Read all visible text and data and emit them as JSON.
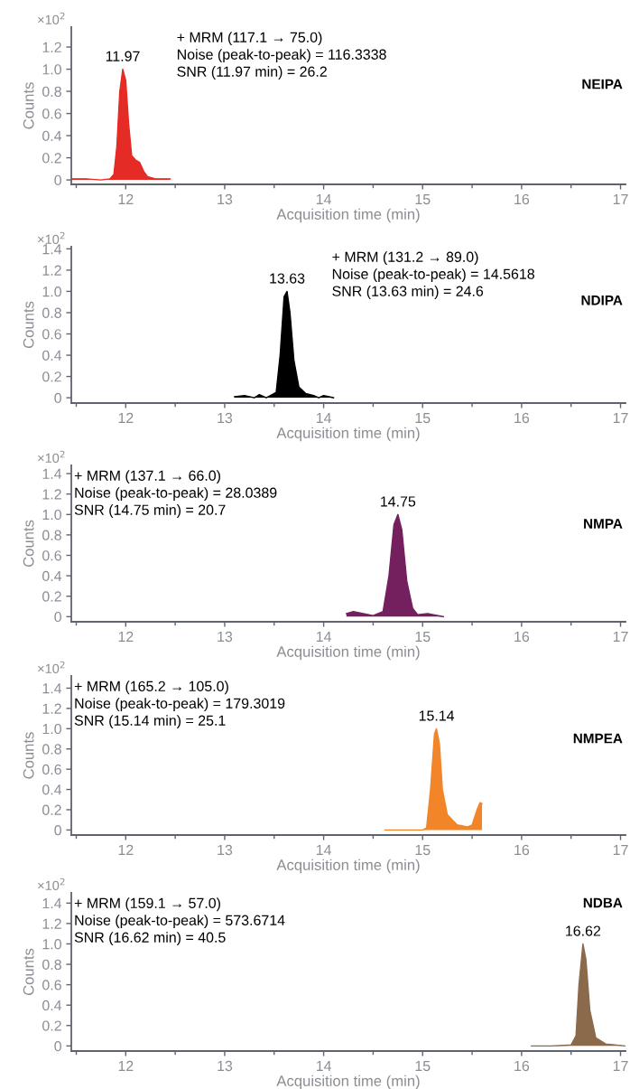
{
  "chart_data": [
    {
      "type": "area",
      "xlabel": "Acquisition time (min)",
      "ylabel": "Counts",
      "xlim": [
        11.45,
        17.05
      ],
      "xticks": [
        {
          "value": 11.5,
          "label": null
        },
        12,
        {
          "value": 12.5,
          "label": null
        },
        13,
        {
          "value": 13.5,
          "label": null
        },
        14,
        {
          "value": 14.5,
          "label": null
        },
        15,
        {
          "value": 15.5,
          "label": null
        },
        16,
        {
          "value": 16.5,
          "label": null
        },
        17
      ],
      "ylim": [
        -0.04,
        1.38
      ],
      "yticks": [
        0,
        {
          "value": 0.2,
          "label": "0.2"
        },
        {
          "value": 0.4,
          "label": "0.4"
        },
        {
          "value": 0.6,
          "label": "0.6"
        },
        {
          "value": 0.8,
          "label": "0.8"
        },
        {
          "value": 1.0,
          "label": "1.0"
        },
        {
          "value": 1.2,
          "label": "1.2"
        }
      ],
      "grid": false,
      "legend": false,
      "x": [
        11.45,
        11.6,
        11.75,
        11.84,
        11.88,
        11.91,
        11.94,
        11.97,
        12.0,
        12.03,
        12.06,
        12.1,
        12.14,
        12.18,
        12.22,
        12.3,
        12.45
      ],
      "series": [
        {
          "name": "NEIPA",
          "color": "#e52b25",
          "values": [
            0.01,
            0.01,
            0.0,
            0.01,
            0.05,
            0.3,
            0.8,
            1.0,
            0.9,
            0.5,
            0.22,
            0.18,
            0.16,
            0.08,
            0.03,
            0.01,
            0.01
          ]
        }
      ],
      "annotations": [
        "×10$^{2}$",
        {
          "text": "11.97",
          "x": 11.97,
          "y": 1.0
        },
        "+ MRM (117.1 → 75.0)\nNoise (peak-to-peak) = 116.3338\nSNR (11.97 min) = 26.2"
      ]
    },
    {
      "type": "area",
      "xlabel": "Acquisition time (min)",
      "ylabel": "Counts",
      "xlim": [
        11.45,
        17.05
      ],
      "xticks": [
        {
          "value": 11.5,
          "label": null
        },
        12,
        {
          "value": 12.5,
          "label": null
        },
        13,
        {
          "value": 13.5,
          "label": null
        },
        14,
        {
          "value": 14.5,
          "label": null
        },
        15,
        {
          "value": 15.5,
          "label": null
        },
        16,
        {
          "value": 16.5,
          "label": null
        },
        17
      ],
      "ylim": [
        -0.05,
        1.42
      ],
      "yticks": [
        0,
        {
          "value": 0.2,
          "label": "0.2"
        },
        {
          "value": 0.4,
          "label": "0.4"
        },
        {
          "value": 0.6,
          "label": "0.6"
        },
        {
          "value": 0.8,
          "label": "0.8"
        },
        {
          "value": 1.0,
          "label": "1.0"
        },
        {
          "value": 1.2,
          "label": "1.2"
        },
        {
          "value": 1.4,
          "label": "1.4"
        }
      ],
      "grid": false,
      "legend": false,
      "x": [
        13.1,
        13.2,
        13.3,
        13.35,
        13.42,
        13.48,
        13.52,
        13.56,
        13.6,
        13.63,
        13.66,
        13.7,
        13.75,
        13.82,
        13.9,
        13.95,
        14.0,
        14.1
      ],
      "series": [
        {
          "name": "NDIPA",
          "color": "#000000",
          "values": [
            0.01,
            0.02,
            0.0,
            0.03,
            0.0,
            0.03,
            0.05,
            0.4,
            0.95,
            1.0,
            0.8,
            0.35,
            0.1,
            0.04,
            0.02,
            0.0,
            0.02,
            0.0
          ]
        }
      ],
      "annotations": [
        "×10$^{2}$",
        {
          "text": "13.63",
          "x": 13.63,
          "y": 1.0
        },
        "+ MRM (131.2 → 89.0)\nNoise (peak-to-peak) = 14.5618\nSNR (13.63 min) = 24.6"
      ]
    },
    {
      "type": "area",
      "xlabel": "Acquisition time (min)",
      "ylabel": "Counts",
      "xlim": [
        11.45,
        17.05
      ],
      "xticks": [
        {
          "value": 11.5,
          "label": null
        },
        12,
        {
          "value": 12.5,
          "label": null
        },
        13,
        {
          "value": 13.5,
          "label": null
        },
        14,
        {
          "value": 14.5,
          "label": null
        },
        15,
        {
          "value": 15.5,
          "label": null
        },
        16,
        {
          "value": 16.5,
          "label": null
        },
        17
      ],
      "ylim": [
        -0.05,
        1.48
      ],
      "yticks": [
        0,
        {
          "value": 0.2,
          "label": "0.2"
        },
        {
          "value": 0.4,
          "label": "0.4"
        },
        {
          "value": 0.6,
          "label": "0.6"
        },
        {
          "value": 0.8,
          "label": "0.8"
        },
        {
          "value": 1.0,
          "label": "1.0"
        },
        {
          "value": 1.2,
          "label": "1.2"
        },
        {
          "value": 1.4,
          "label": "1.4"
        }
      ],
      "grid": false,
      "legend": false,
      "x": [
        14.23,
        14.3,
        14.4,
        14.5,
        14.6,
        14.66,
        14.71,
        14.75,
        14.79,
        14.84,
        14.9,
        14.95,
        15.05,
        15.21
      ],
      "series": [
        {
          "name": "NMPA",
          "color": "#74205e",
          "values": [
            0.03,
            0.05,
            0.03,
            0.01,
            0.05,
            0.4,
            0.9,
            1.0,
            0.85,
            0.35,
            0.08,
            0.02,
            0.03,
            0.0
          ]
        }
      ],
      "annotations": [
        "×10$^{2}$",
        {
          "text": "14.75",
          "x": 14.75,
          "y": 1.0
        },
        "+ MRM (137.1 → 66.0)\nNoise (peak-to-peak) = 28.0389\nSNR (14.75 min) = 20.7"
      ]
    },
    {
      "type": "area",
      "xlabel": "Acquisition time (min)",
      "ylabel": "Counts",
      "xlim": [
        11.45,
        17.05
      ],
      "xticks": [
        {
          "value": 11.5,
          "label": null
        },
        12,
        {
          "value": 12.5,
          "label": null
        },
        13,
        {
          "value": 13.5,
          "label": null
        },
        14,
        {
          "value": 14.5,
          "label": null
        },
        15,
        {
          "value": 15.5,
          "label": null
        },
        16,
        {
          "value": 16.5,
          "label": null
        },
        17
      ],
      "ylim": [
        -0.05,
        1.52
      ],
      "yticks": [
        0,
        {
          "value": 0.2,
          "label": "0.2"
        },
        {
          "value": 0.4,
          "label": "0.4"
        },
        {
          "value": 0.6,
          "label": "0.6"
        },
        {
          "value": 0.8,
          "label": "0.8"
        },
        {
          "value": 1.0,
          "label": "1.0"
        },
        {
          "value": 1.2,
          "label": "1.2"
        },
        {
          "value": 1.4,
          "label": "1.4"
        }
      ],
      "grid": false,
      "legend": false,
      "x": [
        14.62,
        14.8,
        15.0,
        15.04,
        15.08,
        15.12,
        15.14,
        15.17,
        15.2,
        15.25,
        15.35,
        15.45,
        15.5,
        15.55,
        15.58,
        15.6
      ],
      "series": [
        {
          "name": "NMPEA",
          "color": "#f28528",
          "values": [
            0.0,
            0.0,
            0.0,
            0.02,
            0.4,
            0.95,
            1.0,
            0.85,
            0.4,
            0.15,
            0.05,
            0.03,
            0.05,
            0.2,
            0.27,
            0.26
          ]
        }
      ],
      "annotations": [
        "×10$^{2}$",
        {
          "text": "15.14",
          "x": 15.14,
          "y": 1.0
        },
        "+ MRM (165.2 → 105.0)\nNoise (peak-to-peak) = 179.3019\nSNR (15.14 min) = 25.1"
      ]
    },
    {
      "type": "area",
      "xlabel": "Acquisition time (min)",
      "ylabel": "Counts",
      "xlim": [
        11.45,
        17.05
      ],
      "xticks": [
        {
          "value": 11.5,
          "label": null
        },
        12,
        {
          "value": 12.5,
          "label": null
        },
        13,
        {
          "value": 13.5,
          "label": null
        },
        14,
        {
          "value": 14.5,
          "label": null
        },
        15,
        {
          "value": 15.5,
          "label": null
        },
        16,
        {
          "value": 16.5,
          "label": null
        },
        17
      ],
      "ylim": [
        -0.05,
        1.5
      ],
      "yticks": [
        0,
        {
          "value": 0.2,
          "label": "0.2"
        },
        {
          "value": 0.4,
          "label": "0.4"
        },
        {
          "value": 0.6,
          "label": "0.6"
        },
        {
          "value": 0.8,
          "label": "0.8"
        },
        {
          "value": 1.0,
          "label": "1.0"
        },
        {
          "value": 1.2,
          "label": "1.2"
        },
        {
          "value": 1.4,
          "label": "1.4"
        }
      ],
      "grid": false,
      "legend": false,
      "x": [
        16.1,
        16.3,
        16.5,
        16.55,
        16.58,
        16.62,
        16.65,
        16.69,
        16.75,
        16.85,
        17.05
      ],
      "series": [
        {
          "name": "NDBA",
          "color": "#8b6a4c",
          "values": [
            0.0,
            0.0,
            0.01,
            0.1,
            0.6,
            1.0,
            0.85,
            0.35,
            0.08,
            0.02,
            0.0
          ]
        }
      ],
      "annotations": [
        "×10$^{2}$",
        {
          "text": "16.62",
          "x": 16.62,
          "y": 1.0
        },
        "+ MRM (159.1 → 57.0)\nNoise (peak-to-peak) = 573.6714\nSNR (16.62 min) = 40.5"
      ]
    }
  ]
}
